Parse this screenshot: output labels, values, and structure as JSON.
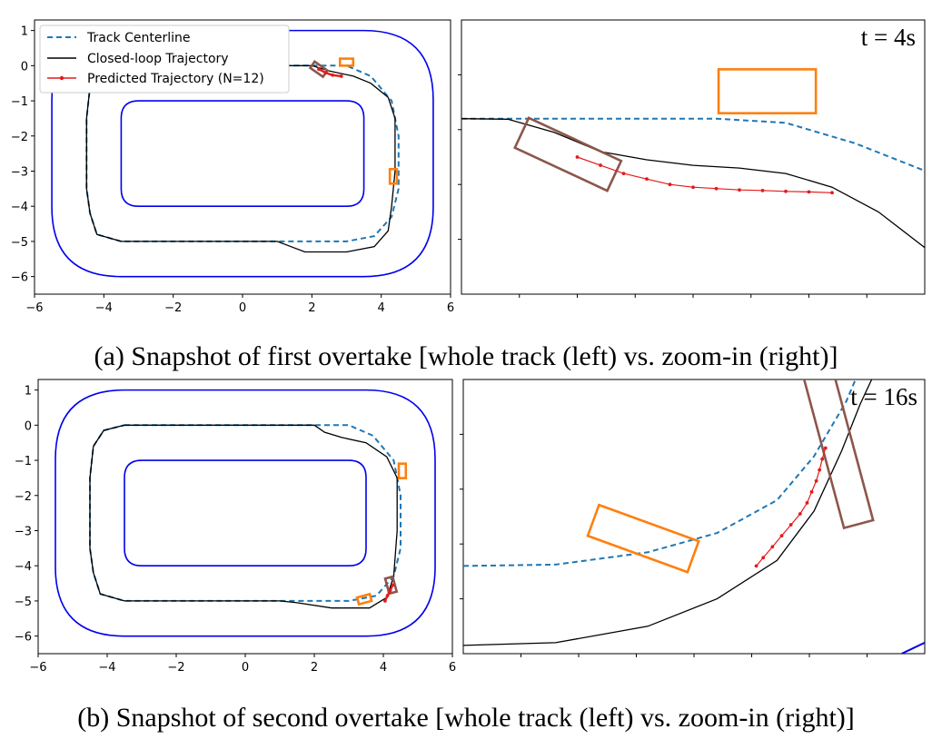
{
  "legend": [
    {
      "label": "Track Centerline",
      "style": "dashed",
      "color": "#1f77b4"
    },
    {
      "label": "Closed-loop Trajectory",
      "style": "solid",
      "color": "#000000"
    },
    {
      "label": "Predicted Trajectory (N=12)",
      "style": "solid-markers",
      "color": "#e41a1c"
    }
  ],
  "captions": {
    "a": "(a) Snapshot of first overtake [whole track (left) vs. zoom-in (right)]",
    "b": "(b) Snapshot of second overtake [whole track (left) vs. zoom-in (right)]"
  },
  "time_labels": {
    "a": "t = 4s",
    "b": "t = 16s"
  },
  "colors": {
    "track_boundary": "#0000ee",
    "centerline": "#1f77b4",
    "trajectory": "#000000",
    "prediction": "#e41a1c",
    "ego_car": "#8c564b",
    "opponent_car": "#ff7f0e"
  },
  "chart_data": [
    {
      "type": "line",
      "panel": "a-left",
      "xlim": [
        -6,
        6
      ],
      "ylim": [
        -6.5,
        1.3
      ],
      "x_ticks": [
        -6,
        -4,
        -2,
        0,
        2,
        4,
        6
      ],
      "y_ticks": [
        1,
        0,
        -1,
        -2,
        -3,
        -4,
        -5,
        -6
      ],
      "tick_labels_x": [
        "−6",
        "−4",
        "−2",
        "0",
        "2",
        "4",
        "6"
      ],
      "tick_labels_y": [
        "1",
        "0",
        "−1",
        "−2",
        "−3",
        "−4",
        "−5",
        "−6"
      ],
      "legend": true,
      "outer_boundary": {
        "x": [
          -5.5,
          5.5
        ],
        "y": [
          -6,
          1
        ],
        "corner_radius": 2
      },
      "inner_boundary": {
        "x": [
          -3.5,
          3.5
        ],
        "y": [
          -4,
          -1
        ],
        "corner_radius": 0.5
      },
      "centerline": [
        [
          -3.5,
          0
        ],
        [
          3,
          0
        ],
        [
          3.7,
          -0.3
        ],
        [
          4.3,
          -1
        ],
        [
          4.5,
          -2
        ],
        [
          4.5,
          -3.5
        ],
        [
          4.3,
          -4.3
        ],
        [
          3.8,
          -4.85
        ],
        [
          3,
          -5
        ],
        [
          -3.5,
          -5
        ],
        [
          -4.2,
          -4.8
        ],
        [
          -4.4,
          -4.2
        ],
        [
          -4.5,
          -3.5
        ],
        [
          -4.5,
          -1.5
        ],
        [
          -4.4,
          -0.6
        ],
        [
          -4.1,
          -0.15
        ],
        [
          -3.5,
          0
        ]
      ],
      "trajectory": [
        [
          -3.5,
          0
        ],
        [
          2,
          0
        ],
        [
          2.5,
          -0.15
        ],
        [
          3.2,
          -0.3
        ],
        [
          3.7,
          -0.5
        ],
        [
          4.2,
          -0.9
        ],
        [
          4.4,
          -1.5
        ],
        [
          4.4,
          -3
        ],
        [
          4.3,
          -4
        ],
        [
          4.2,
          -4.7
        ],
        [
          3.8,
          -5.15
        ],
        [
          3,
          -5.3
        ],
        [
          1.8,
          -5.3
        ],
        [
          1.4,
          -5.15
        ],
        [
          1,
          -5
        ],
        [
          -3.5,
          -5
        ],
        [
          -4.2,
          -4.8
        ],
        [
          -4.4,
          -4.2
        ],
        [
          -4.5,
          -3.5
        ],
        [
          -4.5,
          -1.5
        ],
        [
          -4.4,
          -0.6
        ],
        [
          -4.1,
          -0.15
        ],
        [
          -3.5,
          0
        ]
      ],
      "prediction": [
        [
          2.2,
          -0.1
        ],
        [
          2.4,
          -0.2
        ],
        [
          2.6,
          -0.27
        ],
        [
          2.85,
          -0.3
        ]
      ],
      "cars": [
        {
          "role": "ego",
          "center": [
            2.2,
            -0.1
          ],
          "length": 0.45,
          "width": 0.22,
          "angle_deg": -35
        },
        {
          "role": "opponent",
          "center": [
            3.0,
            0.1
          ],
          "length": 0.38,
          "width": 0.2,
          "angle_deg": 0
        },
        {
          "role": "opponent",
          "center": [
            4.35,
            -3.15
          ],
          "length": 0.42,
          "width": 0.2,
          "angle_deg": 90
        }
      ]
    },
    {
      "type": "line",
      "panel": "a-right",
      "xlim": [
        0,
        10
      ],
      "ylim": [
        -10,
        0
      ],
      "show_tick_labels": false,
      "time_label": "t = 4s",
      "centerline": [
        [
          0,
          -3.6
        ],
        [
          5.5,
          -3.6
        ],
        [
          7,
          -3.75
        ],
        [
          8.5,
          -4.5
        ],
        [
          10,
          -5.5
        ]
      ],
      "trajectory": [
        [
          0,
          -3.6
        ],
        [
          1,
          -3.62
        ],
        [
          2,
          -4.1
        ],
        [
          3,
          -4.8
        ],
        [
          4,
          -5.1
        ],
        [
          5,
          -5.3
        ],
        [
          6,
          -5.4
        ],
        [
          7,
          -5.6
        ],
        [
          8,
          -6.1
        ],
        [
          9,
          -7
        ],
        [
          10,
          -8.3
        ]
      ],
      "prediction": [
        [
          2.5,
          -5.0
        ],
        [
          3,
          -5.3
        ],
        [
          3.5,
          -5.6
        ],
        [
          4,
          -5.8
        ],
        [
          4.5,
          -6.0
        ],
        [
          5,
          -6.1
        ],
        [
          5.5,
          -6.15
        ],
        [
          6,
          -6.2
        ],
        [
          6.5,
          -6.22
        ],
        [
          7,
          -6.25
        ],
        [
          7.5,
          -6.27
        ],
        [
          8,
          -6.3
        ]
      ],
      "cars": [
        {
          "role": "ego",
          "center": [
            2.3,
            -4.9
          ],
          "length": 2.2,
          "width": 1.2,
          "angle_deg": -25
        },
        {
          "role": "opponent",
          "center": [
            6.6,
            -2.6
          ],
          "length": 2.1,
          "width": 1.6,
          "angle_deg": 0
        }
      ]
    },
    {
      "type": "line",
      "panel": "b-left",
      "xlim": [
        -6,
        6
      ],
      "ylim": [
        -6.5,
        1.3
      ],
      "x_ticks": [
        -6,
        -4,
        -2,
        0,
        2,
        4,
        6
      ],
      "y_ticks": [
        1,
        0,
        -1,
        -2,
        -3,
        -4,
        -5,
        -6
      ],
      "tick_labels_x": [
        "−6",
        "−4",
        "−2",
        "0",
        "2",
        "4",
        "6"
      ],
      "tick_labels_y": [
        "1",
        "0",
        "−1",
        "−2",
        "−3",
        "−4",
        "−5",
        "−6"
      ],
      "legend": false,
      "outer_boundary": {
        "x": [
          -5.5,
          5.5
        ],
        "y": [
          -6,
          1
        ],
        "corner_radius": 2
      },
      "inner_boundary": {
        "x": [
          -3.5,
          3.5
        ],
        "y": [
          -4,
          -1
        ],
        "corner_radius": 0.5
      },
      "centerline": [
        [
          -3.5,
          0
        ],
        [
          3,
          0
        ],
        [
          3.7,
          -0.3
        ],
        [
          4.3,
          -1
        ],
        [
          4.5,
          -2
        ],
        [
          4.5,
          -3.5
        ],
        [
          4.3,
          -4.3
        ],
        [
          3.8,
          -4.85
        ],
        [
          3,
          -5
        ],
        [
          -3.5,
          -5
        ],
        [
          -4.2,
          -4.8
        ],
        [
          -4.4,
          -4.2
        ],
        [
          -4.5,
          -3.5
        ],
        [
          -4.5,
          -1.5
        ],
        [
          -4.4,
          -0.6
        ],
        [
          -4.1,
          -0.15
        ],
        [
          -3.5,
          0
        ]
      ],
      "trajectory": [
        [
          -3.5,
          0
        ],
        [
          2,
          0
        ],
        [
          2.3,
          -0.2
        ],
        [
          2.8,
          -0.35
        ],
        [
          3.5,
          -0.5
        ],
        [
          4.1,
          -0.9
        ],
        [
          4.4,
          -1.5
        ],
        [
          4.4,
          -3
        ],
        [
          4.3,
          -4.3
        ],
        [
          4.1,
          -4.9
        ],
        [
          3.6,
          -5.2
        ],
        [
          2.5,
          -5.2
        ],
        [
          1.5,
          -5.05
        ],
        [
          1,
          -5
        ],
        [
          -3.5,
          -5
        ],
        [
          -4.2,
          -4.8
        ],
        [
          -4.4,
          -4.2
        ],
        [
          -4.5,
          -3.5
        ],
        [
          -4.5,
          -1.5
        ],
        [
          -4.4,
          -0.6
        ],
        [
          -4.1,
          -0.15
        ],
        [
          -3.5,
          0
        ]
      ],
      "prediction": [
        [
          4.05,
          -5.0
        ],
        [
          4.12,
          -4.85
        ],
        [
          4.2,
          -4.7
        ],
        [
          4.27,
          -4.55
        ]
      ],
      "cars": [
        {
          "role": "ego",
          "center": [
            4.22,
            -4.55
          ],
          "length": 0.45,
          "width": 0.22,
          "angle_deg": -75
        },
        {
          "role": "opponent",
          "center": [
            3.45,
            -4.95
          ],
          "length": 0.38,
          "width": 0.2,
          "angle_deg": 15
        },
        {
          "role": "opponent",
          "center": [
            4.55,
            -1.3
          ],
          "length": 0.42,
          "width": 0.2,
          "angle_deg": 90
        }
      ]
    },
    {
      "type": "line",
      "panel": "b-right",
      "xlim": [
        0,
        10
      ],
      "ylim": [
        -10,
        0
      ],
      "show_tick_labels": false,
      "time_label": "t = 16s",
      "centerline": [
        [
          0,
          -6.8
        ],
        [
          2,
          -6.75
        ],
        [
          4,
          -6.3
        ],
        [
          5.5,
          -5.6
        ],
        [
          6.8,
          -4.4
        ],
        [
          7.6,
          -2.8
        ],
        [
          8.3,
          -0.8
        ],
        [
          8.5,
          0
        ]
      ],
      "trajectory": [
        [
          0,
          -9.7
        ],
        [
          2,
          -9.6
        ],
        [
          4,
          -9.0
        ],
        [
          5.5,
          -8.0
        ],
        [
          6.8,
          -6.6
        ],
        [
          7.6,
          -4.8
        ],
        [
          8.2,
          -2.6
        ],
        [
          8.6,
          -0.9
        ],
        [
          8.85,
          0
        ]
      ],
      "prediction": [
        [
          6.35,
          -6.8
        ],
        [
          6.5,
          -6.5
        ],
        [
          6.7,
          -6.1
        ],
        [
          6.9,
          -5.7
        ],
        [
          7.1,
          -5.3
        ],
        [
          7.3,
          -4.9
        ],
        [
          7.45,
          -4.5
        ],
        [
          7.55,
          -4.1
        ],
        [
          7.65,
          -3.7
        ],
        [
          7.72,
          -3.3
        ],
        [
          7.78,
          -2.9
        ],
        [
          7.85,
          -2.5
        ]
      ],
      "cars": [
        {
          "role": "ego",
          "center": [
            8.1,
            -2.35
          ],
          "length": 3.6,
          "width": 1.1,
          "angle_deg": -75
        },
        {
          "role": "opponent",
          "center": [
            3.9,
            -5.8
          ],
          "length": 2.3,
          "width": 1.2,
          "angle_deg": -20
        }
      ],
      "outer_boundary_corner": [
        [
          9.5,
          -10
        ],
        [
          10,
          -9.6
        ]
      ]
    }
  ]
}
